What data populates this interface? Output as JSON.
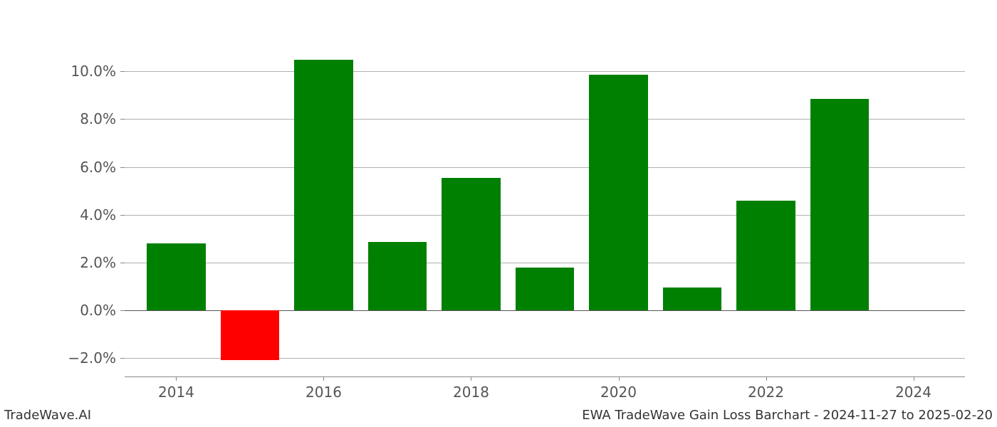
{
  "chart": {
    "type": "bar",
    "background_color": "#ffffff",
    "grid_color": "#b0b0b0",
    "zero_line_color": "#555555",
    "axis_color": "#888888",
    "tick_label_color": "#555555",
    "tick_fontsize": 20,
    "ylim": [
      -2.8,
      11.5
    ],
    "y_ticks": [
      -2.0,
      0.0,
      2.0,
      4.0,
      6.0,
      8.0,
      10.0
    ],
    "y_tick_labels": [
      "−2.0%",
      "0.0%",
      "2.0%",
      "4.0%",
      "6.0%",
      "8.0%",
      "10.0%"
    ],
    "x_tick_positions": [
      2014,
      2016,
      2018,
      2020,
      2022,
      2024
    ],
    "x_tick_labels": [
      "2014",
      "2016",
      "2018",
      "2020",
      "2022",
      "2024"
    ],
    "xlim": [
      2013.3,
      2024.7
    ],
    "bar_width": 0.8,
    "positive_color": "#008000",
    "negative_color": "#ff0000",
    "bars": [
      {
        "x": 2014,
        "value": 2.8
      },
      {
        "x": 2015,
        "value": -2.1
      },
      {
        "x": 2016,
        "value": 10.5
      },
      {
        "x": 2017,
        "value": 2.85
      },
      {
        "x": 2018,
        "value": 5.55
      },
      {
        "x": 2019,
        "value": 1.8
      },
      {
        "x": 2020,
        "value": 9.85
      },
      {
        "x": 2021,
        "value": 0.95
      },
      {
        "x": 2022,
        "value": 4.6
      },
      {
        "x": 2023,
        "value": 8.85
      }
    ]
  },
  "footer": {
    "left": "TradeWave.AI",
    "right": "EWA TradeWave Gain Loss Barchart - 2024-11-27 to 2025-02-20",
    "fontsize": 18,
    "color": "#333333"
  }
}
